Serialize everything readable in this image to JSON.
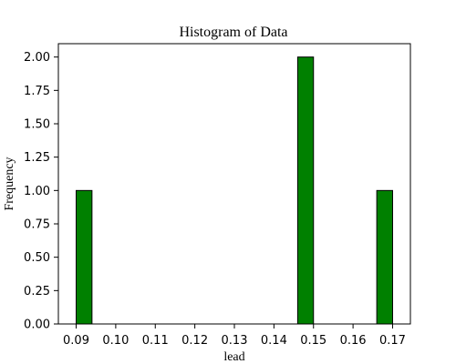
{
  "chart_data": {
    "type": "bar",
    "title": "Histogram of Data",
    "xlabel": "lead",
    "ylabel": "Frequency",
    "xlim": [
      0.0855,
      0.1745
    ],
    "ylim": [
      0,
      2.1
    ],
    "x_ticks": [
      0.09,
      0.1,
      0.11,
      0.12,
      0.13,
      0.14,
      0.15,
      0.16,
      0.17
    ],
    "x_tick_labels": [
      "0.09",
      "0.10",
      "0.11",
      "0.12",
      "0.13",
      "0.14",
      "0.15",
      "0.16",
      "0.17"
    ],
    "y_ticks": [
      0,
      0.25,
      0.5,
      0.75,
      1.0,
      1.25,
      1.5,
      1.75,
      2.0
    ],
    "y_tick_labels": [
      "0.00",
      "0.25",
      "0.50",
      "0.75",
      "1.00",
      "1.25",
      "1.50",
      "1.75",
      "2.00"
    ],
    "bins": [
      {
        "x0": 0.09,
        "x1": 0.094,
        "value": 1
      },
      {
        "x0": 0.146,
        "x1": 0.15,
        "value": 2
      },
      {
        "x0": 0.166,
        "x1": 0.17,
        "value": 1
      }
    ],
    "bar_color": "#008000",
    "edge_color": "#000000",
    "grid": false
  }
}
